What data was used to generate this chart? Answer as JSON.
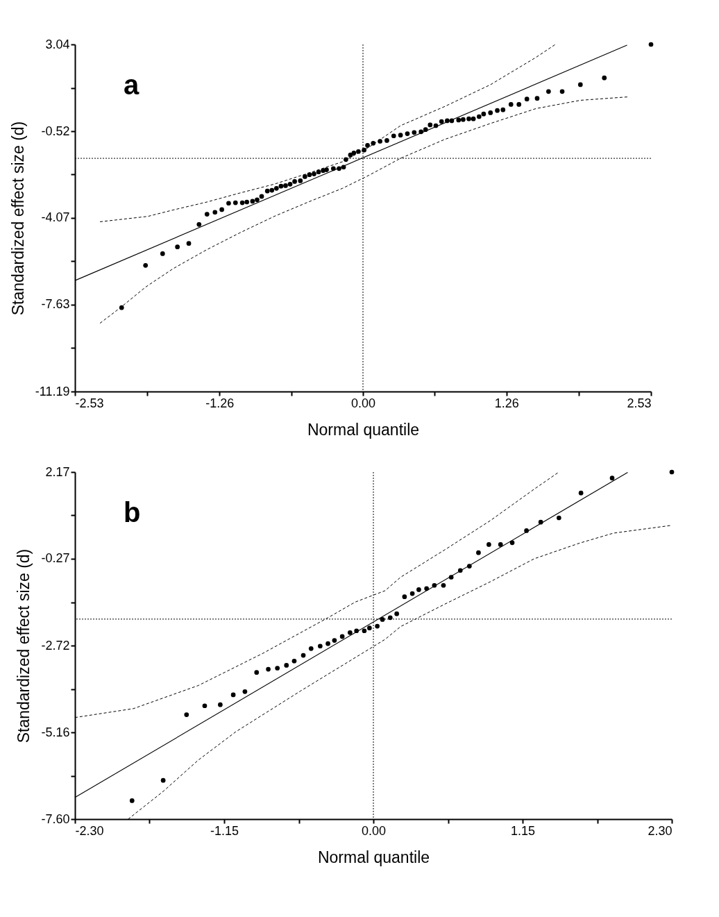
{
  "chart_data": [
    {
      "type": "scatter",
      "xlabel": "Normal quantile",
      "ylabel": "Standardized effect size (d)",
      "xlim": [
        -2.53,
        2.53
      ],
      "ylim": [
        -11.19,
        3.04
      ],
      "xticks": [
        -2.53,
        {
          "value": -1.895,
          "label": null
        },
        -1.26,
        {
          "value": -0.63,
          "label": null
        },
        {
          "value": 0,
          "label": "0.00"
        },
        {
          "value": 0.63,
          "label": null
        },
        1.26,
        {
          "value": 1.895,
          "label": null
        },
        2.53
      ],
      "yticks": [
        -11.19,
        {
          "value": -9.41,
          "label": null
        },
        -7.63,
        {
          "value": -5.85,
          "label": null
        },
        -4.07,
        {
          "value": -2.295,
          "label": null
        },
        -0.52,
        {
          "value": 1.26,
          "label": null
        },
        3.04
      ],
      "grid": false,
      "legend": false,
      "annotations": [
        "a"
      ],
      "ref_lines": [
        {
          "axis": "x",
          "value": 0,
          "color": "#000000",
          "line_style": "dotted"
        },
        {
          "axis": "y",
          "value": -1.63,
          "color": "#000000",
          "line_style": "dotted"
        }
      ],
      "series": [
        {
          "type": "scatter",
          "color": "#000000",
          "marker": "circle",
          "x": [
            -2.12,
            -1.91,
            -1.76,
            -1.63,
            -1.53,
            -1.44,
            -1.37,
            -1.3,
            -1.24,
            -1.18,
            -1.12,
            -1.06,
            -1.02,
            -0.97,
            -0.93,
            -0.89,
            -0.84,
            -0.8,
            -0.76,
            -0.72,
            -0.68,
            -0.64,
            -0.6,
            -0.55,
            -0.51,
            -0.47,
            -0.43,
            -0.39,
            -0.35,
            -0.32,
            -0.26,
            -0.21,
            -0.17,
            -0.15,
            -0.11,
            -0.08,
            -0.04,
            0.01,
            0.04,
            0.09,
            0.15,
            0.21,
            0.27,
            0.33,
            0.39,
            0.45,
            0.51,
            0.55,
            0.59,
            0.64,
            0.69,
            0.74,
            0.78,
            0.84,
            0.88,
            0.93,
            0.97,
            1.02,
            1.06,
            1.12,
            1.18,
            1.23,
            1.3,
            1.37,
            1.44,
            1.53,
            1.63,
            1.75,
            1.91,
            2.12,
            2.53
          ],
          "values": [
            -7.75,
            -6.02,
            -5.54,
            -5.26,
            -5.12,
            -4.34,
            -3.92,
            -3.84,
            -3.73,
            -3.47,
            -3.45,
            -3.45,
            -3.42,
            -3.39,
            -3.33,
            -3.19,
            -2.97,
            -2.94,
            -2.86,
            -2.77,
            -2.75,
            -2.69,
            -2.58,
            -2.55,
            -2.38,
            -2.3,
            -2.27,
            -2.19,
            -2.13,
            -2.1,
            -2.05,
            -2.05,
            -1.99,
            -1.68,
            -1.49,
            -1.41,
            -1.35,
            -1.29,
            -1.1,
            -1.01,
            -0.93,
            -0.9,
            -0.71,
            -0.68,
            -0.62,
            -0.57,
            -0.54,
            -0.45,
            -0.26,
            -0.29,
            -0.12,
            -0.09,
            -0.09,
            -0.06,
            -0.04,
            -0.01,
            -0.01,
            0.08,
            0.19,
            0.24,
            0.33,
            0.36,
            0.58,
            0.58,
            0.8,
            0.83,
            1.11,
            1.11,
            1.39,
            1.67,
            3.04
          ]
        },
        {
          "type": "line",
          "color": "#000000",
          "line_style": "solid",
          "x": [
            -2.53,
            2.32
          ],
          "values": [
            -6.64,
            3.01
          ]
        },
        {
          "type": "line",
          "color": "#000000",
          "line_style": "dashed",
          "x": [
            -2.31,
            -1.89,
            -1.67,
            -1.37,
            -1.08,
            -0.78,
            -0.48,
            -0.18,
            0.05,
            0.33,
            0.72,
            1.12,
            1.52,
            1.69
          ],
          "values": [
            -4.23,
            -4.01,
            -3.75,
            -3.42,
            -3.05,
            -2.69,
            -2.24,
            -1.77,
            -1.18,
            -0.29,
            0.5,
            1.39,
            2.51,
            3.04
          ]
        },
        {
          "type": "line",
          "color": "#000000",
          "line_style": "dashed",
          "x": [
            -2.31,
            -2.13,
            -1.91,
            -1.67,
            -1.37,
            -1.08,
            -0.78,
            -0.48,
            -0.18,
            0.05,
            0.33,
            0.72,
            1.12,
            1.52,
            1.91,
            2.33
          ],
          "values": [
            -8.39,
            -7.75,
            -6.91,
            -6.16,
            -5.37,
            -4.68,
            -4.01,
            -3.42,
            -2.86,
            -2.33,
            -1.63,
            -0.85,
            -0.2,
            0.41,
            0.75,
            0.89
          ]
        }
      ]
    },
    {
      "type": "scatter",
      "xlabel": "Normal quantile",
      "ylabel": "Standardized effect size (d)",
      "xlim": [
        -2.3,
        2.3
      ],
      "ylim": [
        -7.6,
        2.17
      ],
      "xticks": [
        {
          "value": -2.3,
          "label": "-2.30"
        },
        {
          "value": -1.725,
          "label": null
        },
        -1.15,
        {
          "value": -0.575,
          "label": null
        },
        {
          "value": 0,
          "label": "0.00"
        },
        {
          "value": 0.575,
          "label": null
        },
        1.15,
        {
          "value": 1.725,
          "label": null
        },
        {
          "value": 2.3,
          "label": "2.30"
        }
      ],
      "yticks": [
        {
          "value": -7.6,
          "label": "-7.60"
        },
        {
          "value": -6.38,
          "label": null
        },
        -5.16,
        {
          "value": -3.94,
          "label": null
        },
        -2.72,
        {
          "value": -1.495,
          "label": null
        },
        -0.27,
        {
          "value": 0.95,
          "label": null
        },
        2.17
      ],
      "grid": false,
      "legend": false,
      "annotations": [
        "b"
      ],
      "ref_lines": [
        {
          "axis": "x",
          "value": 0,
          "color": "#000000",
          "line_style": "dotted"
        },
        {
          "axis": "y",
          "value": -1.97,
          "color": "#000000",
          "line_style": "dotted"
        }
      ],
      "series": [
        {
          "type": "scatter",
          "color": "#000000",
          "marker": "circle",
          "x": [
            -1.86,
            -1.62,
            -1.44,
            -1.3,
            -1.18,
            -1.08,
            -0.99,
            -0.9,
            -0.81,
            -0.74,
            -0.67,
            -0.61,
            -0.54,
            -0.48,
            -0.41,
            -0.35,
            -0.3,
            -0.24,
            -0.18,
            -0.13,
            -0.07,
            -0.03,
            0.03,
            0.07,
            0.13,
            0.18,
            0.24,
            0.3,
            0.35,
            0.41,
            0.47,
            0.54,
            0.6,
            0.67,
            0.74,
            0.81,
            0.89,
            0.98,
            1.07,
            1.18,
            1.29,
            1.43,
            1.6,
            1.84,
            2.3
          ],
          "values": [
            -7.08,
            -6.51,
            -4.66,
            -4.41,
            -4.38,
            -4.1,
            -4.01,
            -3.47,
            -3.38,
            -3.35,
            -3.27,
            -3.15,
            -2.99,
            -2.8,
            -2.73,
            -2.66,
            -2.57,
            -2.46,
            -2.35,
            -2.3,
            -2.3,
            -2.22,
            -2.17,
            -1.98,
            -1.93,
            -1.82,
            -1.34,
            -1.25,
            -1.14,
            -1.11,
            -1.02,
            -1.02,
            -0.79,
            -0.6,
            -0.48,
            -0.1,
            0.13,
            0.13,
            0.18,
            0.52,
            0.76,
            0.88,
            1.58,
            2.0,
            2.17
          ]
        },
        {
          "type": "line",
          "color": "#000000",
          "line_style": "solid",
          "x": [
            -2.3,
            1.96
          ],
          "values": [
            -6.99,
            2.16
          ]
        },
        {
          "type": "line",
          "color": "#000000",
          "line_style": "dashed",
          "x": [
            -2.3,
            -1.85,
            -1.35,
            -0.85,
            -0.35,
            -0.14,
            0.09,
            0.21,
            0.55,
            0.9,
            1.24,
            1.43
          ],
          "values": [
            -4.74,
            -4.49,
            -3.84,
            -2.93,
            -1.93,
            -1.49,
            -1.17,
            -0.79,
            -0.02,
            0.8,
            1.69,
            2.17
          ]
        },
        {
          "type": "line",
          "color": "#000000",
          "line_style": "dashed",
          "x": [
            -1.89,
            -1.62,
            -1.35,
            -1.06,
            -0.56,
            0.09,
            0.21,
            0.55,
            0.9,
            1.24,
            1.59,
            1.85,
            2.3
          ],
          "values": [
            -7.6,
            -6.82,
            -5.94,
            -5.14,
            -3.99,
            -2.54,
            -2.18,
            -1.55,
            -0.92,
            -0.27,
            0.17,
            0.45,
            0.67
          ]
        }
      ]
    }
  ]
}
